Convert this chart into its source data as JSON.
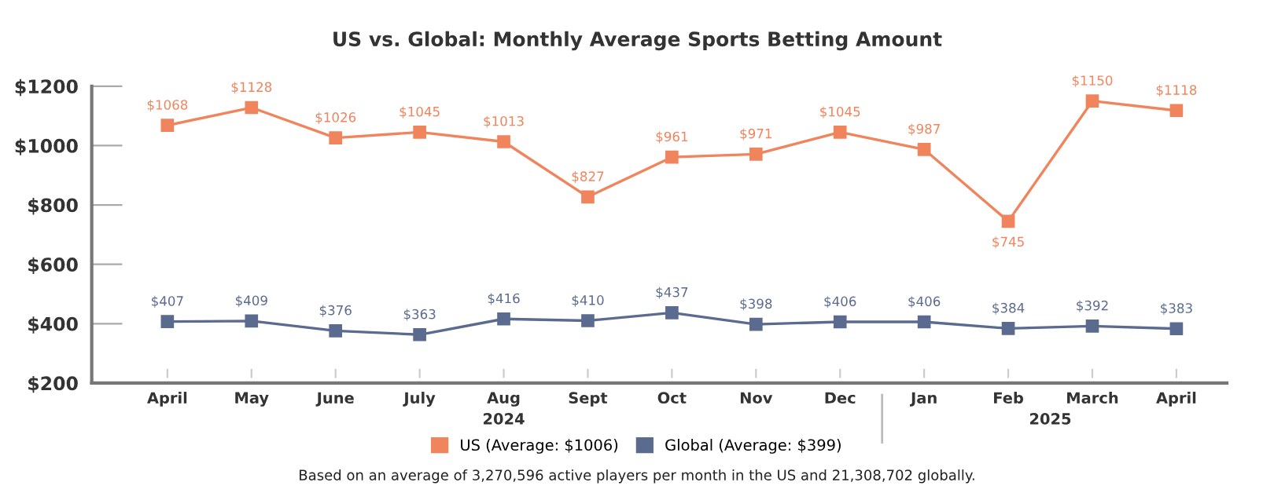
{
  "chart_data": {
    "type": "line",
    "title": "US vs. Global: Monthly Average Sports Betting Amount",
    "categories": [
      "April",
      "May",
      "June",
      "July",
      "Aug",
      "Sept",
      "Oct",
      "Nov",
      "Dec",
      "Jan",
      "Feb",
      "March",
      "April"
    ],
    "series": [
      {
        "name": "US (Average: $1006)",
        "color": "#f0845c",
        "values": [
          1068,
          1128,
          1026,
          1045,
          1013,
          827,
          961,
          971,
          1045,
          987,
          745,
          1150,
          1118
        ],
        "value_labels": [
          "$1068",
          "$1128",
          "$1026",
          "$1045",
          "$1013",
          "$827",
          "$961",
          "$971",
          "$1045",
          "$987",
          "$745",
          "$1150",
          "$1118"
        ]
      },
      {
        "name": "Global (Average: $399)",
        "color": "#5b6b8f",
        "values": [
          407,
          409,
          376,
          363,
          416,
          410,
          437,
          398,
          406,
          406,
          384,
          392,
          383
        ],
        "value_labels": [
          "$407",
          "$409",
          "$376",
          "$363",
          "$416",
          "$410",
          "$437",
          "$398",
          "$406",
          "$406",
          "$384",
          "$392",
          "$383"
        ]
      }
    ],
    "ylim": [
      200,
      1200
    ],
    "yticks": [
      {
        "value": 200,
        "label": "$200"
      },
      {
        "value": 400,
        "label": "$400"
      },
      {
        "value": 600,
        "label": "$600"
      },
      {
        "value": 800,
        "label": "$800"
      },
      {
        "value": 1000,
        "label": "$1000"
      },
      {
        "value": 1200,
        "label": "$1200"
      }
    ],
    "annotations": [
      "2024",
      "2025",
      "Based on an average of 3,270,596 active players per month in the US and 21,308,702 globally."
    ],
    "marker": "square",
    "line_style": "solid",
    "legend": "bottom",
    "grid": false
  }
}
